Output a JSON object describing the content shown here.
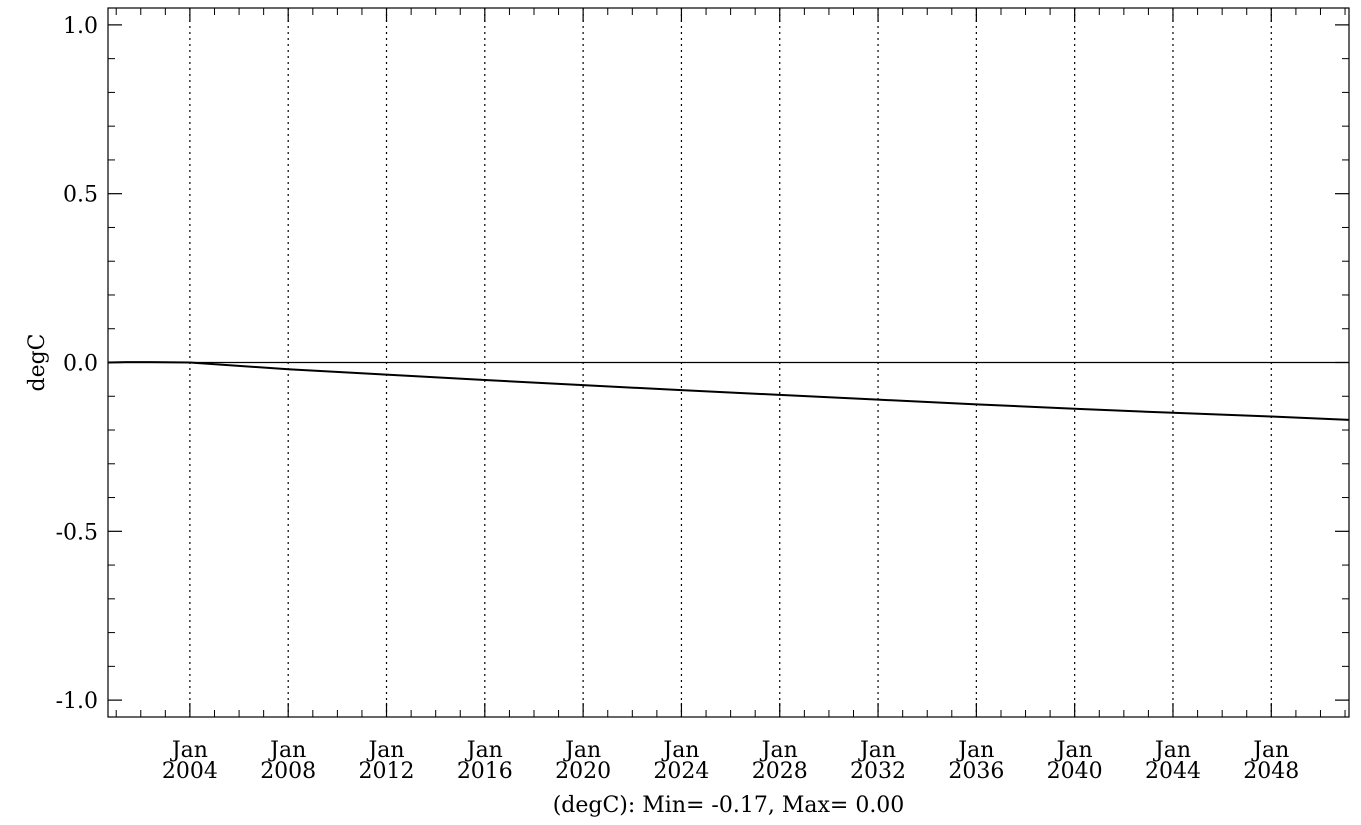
{
  "chart_data": {
    "type": "line",
    "title": "",
    "ylabel": "degC",
    "xlabel": "(degC): Min= -0.17, Max= 0.00",
    "xlim": [
      "2000-09-01",
      "2051-03-01"
    ],
    "ylim": [
      -1.05,
      1.05
    ],
    "y_ticks": [
      -1.0,
      -0.5,
      0.0,
      0.5,
      1.0
    ],
    "y_tick_labels": [
      "-1.0",
      "-0.5",
      "0.0",
      "0.5",
      "1.0"
    ],
    "x_ticks": [
      {
        "date": "2004-01-01",
        "month": "Jan",
        "year": "2004"
      },
      {
        "date": "2008-01-01",
        "month": "Jan",
        "year": "2008"
      },
      {
        "date": "2012-01-01",
        "month": "Jan",
        "year": "2012"
      },
      {
        "date": "2016-01-01",
        "month": "Jan",
        "year": "2016"
      },
      {
        "date": "2020-01-01",
        "month": "Jan",
        "year": "2020"
      },
      {
        "date": "2024-01-01",
        "month": "Jan",
        "year": "2024"
      },
      {
        "date": "2028-01-01",
        "month": "Jan",
        "year": "2028"
      },
      {
        "date": "2032-01-01",
        "month": "Jan",
        "year": "2032"
      },
      {
        "date": "2036-01-01",
        "month": "Jan",
        "year": "2036"
      },
      {
        "date": "2040-01-01",
        "month": "Jan",
        "year": "2040"
      },
      {
        "date": "2044-01-01",
        "month": "Jan",
        "year": "2044"
      },
      {
        "date": "2048-01-01",
        "month": "Jan",
        "year": "2048"
      }
    ],
    "grid": "vertical-dotted",
    "zero_line": true,
    "series": [
      {
        "values": [
          {
            "x": "2000-09-01",
            "y": 0.0
          },
          {
            "x": "2001-06-01",
            "y": 0.001
          },
          {
            "x": "2002-06-01",
            "y": 0.001
          },
          {
            "x": "2004-01-01",
            "y": 0.0
          },
          {
            "x": "2008-01-01",
            "y": -0.02
          },
          {
            "x": "2012-01-01",
            "y": -0.036
          },
          {
            "x": "2016-01-01",
            "y": -0.052
          },
          {
            "x": "2020-01-01",
            "y": -0.067
          },
          {
            "x": "2024-01-01",
            "y": -0.082
          },
          {
            "x": "2028-01-01",
            "y": -0.096
          },
          {
            "x": "2032-01-01",
            "y": -0.11
          },
          {
            "x": "2036-01-01",
            "y": -0.124
          },
          {
            "x": "2040-01-01",
            "y": -0.137
          },
          {
            "x": "2044-01-01",
            "y": -0.149
          },
          {
            "x": "2048-01-01",
            "y": -0.16
          },
          {
            "x": "2051-03-01",
            "y": -0.17
          }
        ]
      }
    ]
  }
}
